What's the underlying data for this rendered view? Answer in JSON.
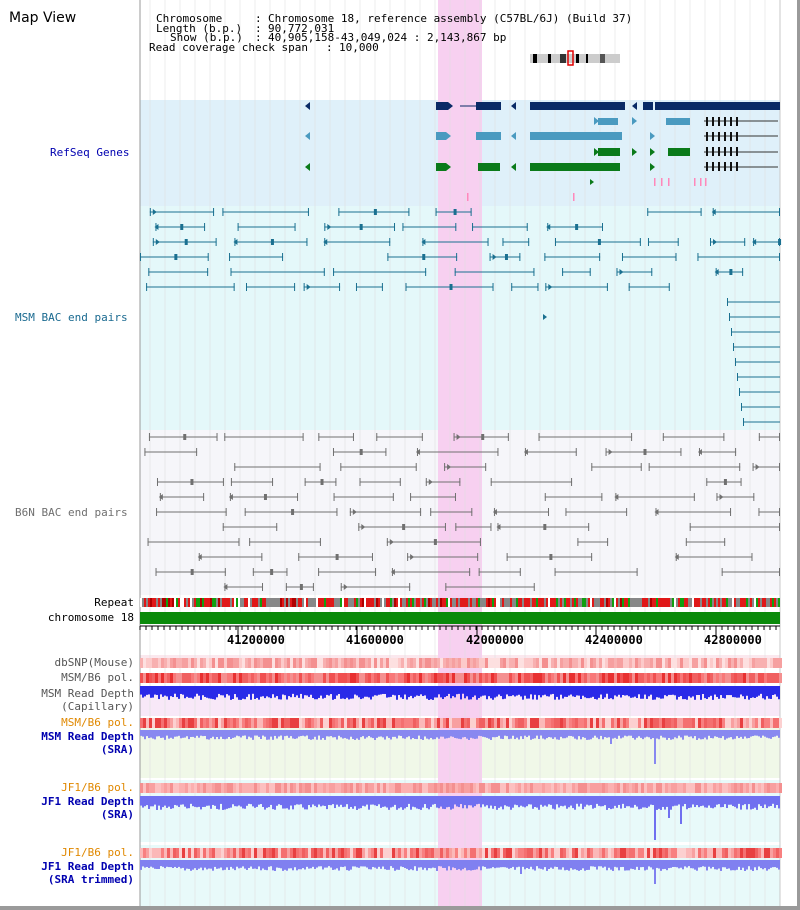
{
  "title": "Map View",
  "header": {
    "chromosome_label": "Chromosome",
    "chromosome_value": "Chromosome 18, reference assembly (C57BL/6J) (Build 37)",
    "length_label": "Length (b.p.)",
    "length_value": "90,772,031",
    "show_label": "Show (b.p.)",
    "show_value": "40,905,158-43,049,024 : 2,143,867 bp",
    "span_label": "Read coverage check span",
    "span_value": "10,000"
  },
  "tracks": {
    "refseq": "RefSeq Genes",
    "msm_bac": "MSM BAC end pairs",
    "b6n_bac": "B6N BAC end pairs",
    "repeat": "Repeat",
    "chromosome": "chromosome 18",
    "dbsnp": "dbSNP(Mouse)",
    "msm_b6_pol_1": "MSM/B6 pol.",
    "msm_read_depth_cap_1": "MSM Read Depth",
    "msm_read_depth_cap_2": "(Capillary)",
    "msm_b6_pol_2": "MSM/B6 pol.",
    "msm_read_depth_sra_1": "MSM Read Depth",
    "msm_read_depth_sra_2": "(SRA)",
    "jf1_b6_pol_1": "JF1/B6 pol.",
    "jf1_read_depth_1": "JF1 Read Depth",
    "jf1_read_depth_2": "(SRA)",
    "jf1_b6_pol_2": "JF1/B6 pol.",
    "jf1_read_depth_trim_1": "JF1 Read Depth",
    "jf1_read_depth_trim_2": "(SRA trimmed)"
  },
  "axis": {
    "ticks": [
      "41200000",
      "41600000",
      "42000000",
      "42400000",
      "42800000"
    ]
  },
  "colors": {
    "refseq_dark": "#0a2a66",
    "refseq_light": "#4a9ac0",
    "refseq_green": "#0a7a1a",
    "msm_bac": "#1a7090",
    "b6n_bac": "#707070",
    "highlight": "#f7d0f0",
    "chromosome_bar": "#0a8a0a",
    "depth_blue": "#2020e0",
    "depth_sra": "#8888f0",
    "orange_label": "#e08800",
    "blue_label": "#0000b0"
  }
}
